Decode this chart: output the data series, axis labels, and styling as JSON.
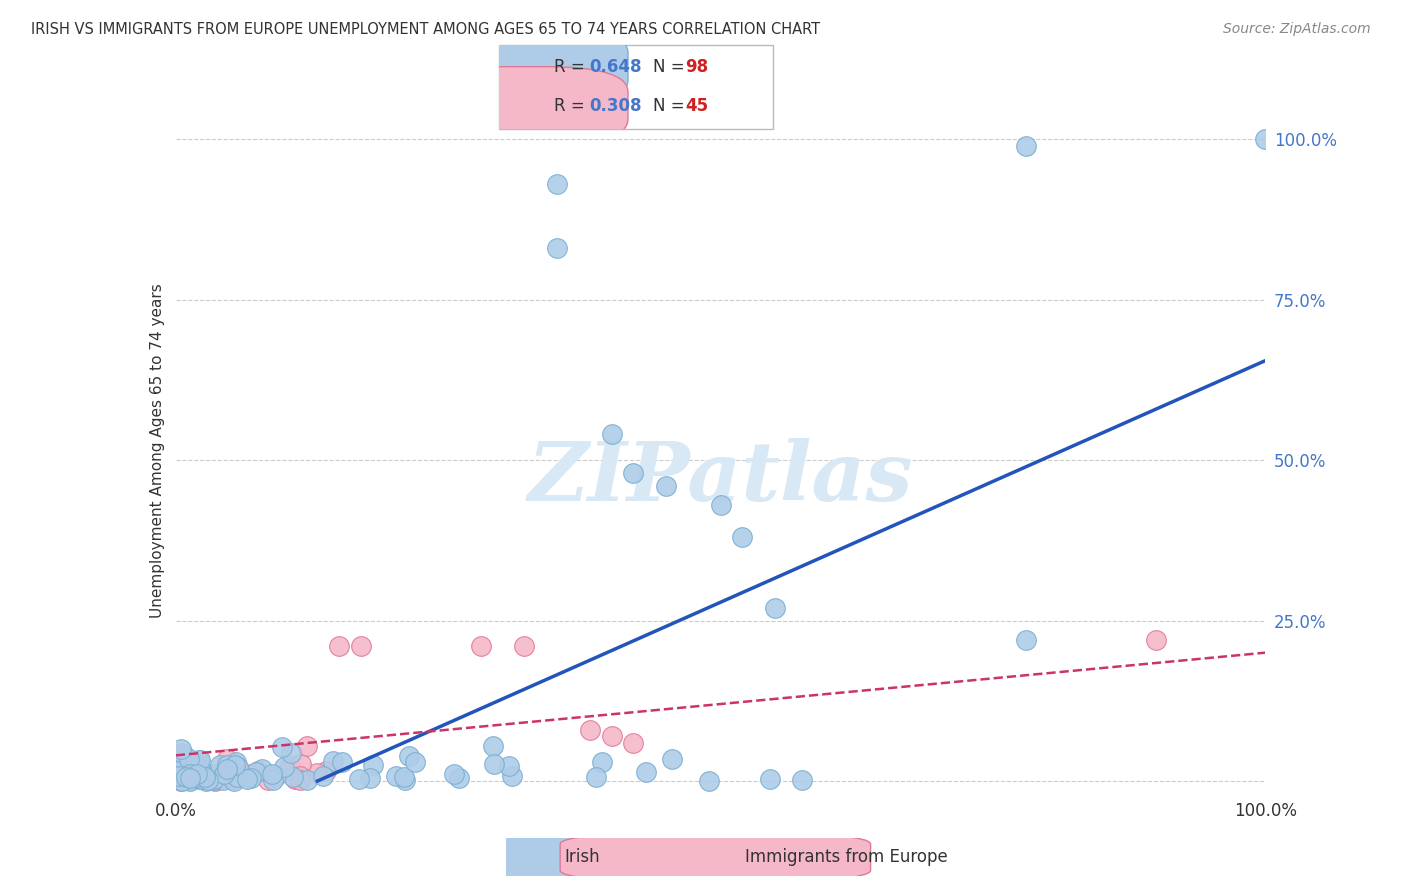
{
  "title": "IRISH VS IMMIGRANTS FROM EUROPE UNEMPLOYMENT AMONG AGES 65 TO 74 YEARS CORRELATION CHART",
  "source": "Source: ZipAtlas.com",
  "ylabel": "Unemployment Among Ages 65 to 74 years",
  "xlim": [
    0,
    1.0
  ],
  "ylim": [
    -0.02,
    1.05
  ],
  "x_tick_labels": [
    "0.0%",
    "",
    "",
    "",
    "100.0%"
  ],
  "y_tick_labels": [
    "",
    "25.0%",
    "50.0%",
    "75.0%",
    "100.0%"
  ],
  "irish_R": 0.648,
  "irish_N": 98,
  "immigrants_R": 0.308,
  "immigrants_N": 45,
  "irish_color": "#aecce8",
  "irish_edge_color": "#7aaed0",
  "immigrants_color": "#f5b8c8",
  "immigrants_edge_color": "#e07898",
  "irish_line_color": "#2255bb",
  "immigrants_line_color": "#cc3366",
  "watermark_text": "ZIPatlas",
  "watermark_color": "#d8e8f5",
  "background_color": "#ffffff",
  "grid_color": "#cccccc",
  "title_color": "#333333",
  "source_color": "#888888",
  "ytick_color": "#4477cc",
  "xtick_color": "#333333",
  "ylabel_color": "#333333",
  "legend_R_color": "#4477cc",
  "legend_N_color": "#cc2222",
  "legend_text_color": "#333333",
  "irish_line_x0": 0.13,
  "irish_line_y0": 0.0,
  "irish_line_x1": 1.0,
  "irish_line_y1": 0.655,
  "imm_line_x0": 0.0,
  "imm_line_y0": 0.04,
  "imm_line_x1": 1.0,
  "imm_line_y1": 0.2
}
